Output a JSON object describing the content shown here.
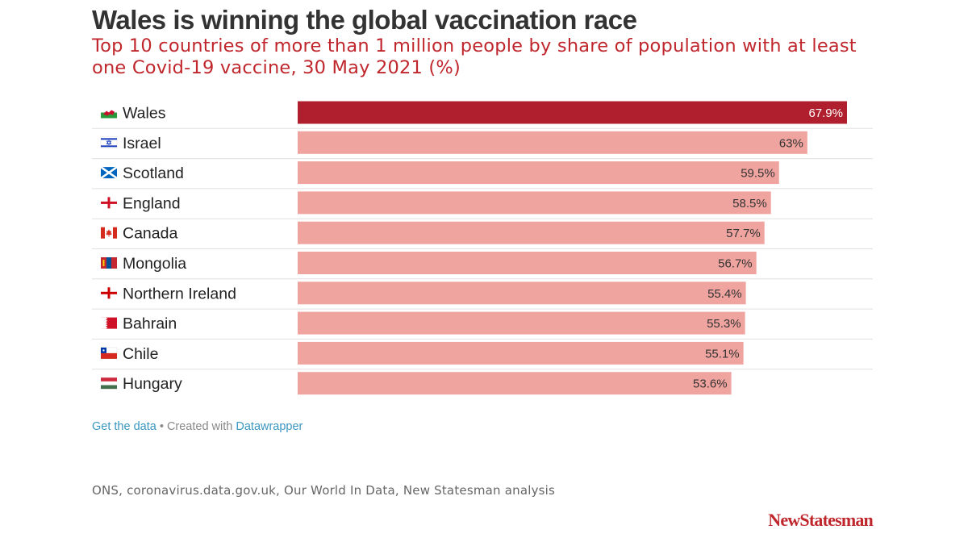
{
  "header": {
    "title": "Wales is winning the global vaccination race",
    "subtitle": "Top 10 countries of more than 1 million people by share of population with at least one Covid-19 vaccine, 30 May 2021 (%)"
  },
  "chart_data": {
    "type": "bar",
    "orientation": "horizontal",
    "title": "Wales is winning the global vaccination race",
    "subtitle": "Top 10 countries of more than 1 million people by share of population with at least one Covid-19 vaccine, 30 May 2021 (%)",
    "xlabel": "",
    "ylabel": "",
    "xlim": [
      0,
      67.9
    ],
    "grid": false,
    "categories": [
      "Wales",
      "Israel",
      "Scotland",
      "England",
      "Canada",
      "Mongolia",
      "Northern Ireland",
      "Bahrain",
      "Chile",
      "Hungary"
    ],
    "values": [
      67.9,
      63,
      59.5,
      58.5,
      57.7,
      56.7,
      55.4,
      55.3,
      55.1,
      53.6
    ],
    "value_labels": [
      "67.9%",
      "63%",
      "59.5%",
      "58.5%",
      "57.7%",
      "56.7%",
      "55.4%",
      "55.3%",
      "55.1%",
      "53.6%"
    ],
    "flags": [
      "wales-flag-icon",
      "israel-flag-icon",
      "scotland-flag-icon",
      "england-flag-icon",
      "canada-flag-icon",
      "mongolia-flag-icon",
      "northern-ireland-flag-icon",
      "bahrain-flag-icon",
      "chile-flag-icon",
      "hungary-flag-icon"
    ],
    "highlight_index": 0,
    "colors": {
      "highlight": "#b01f2d",
      "bar": "#f0a49f",
      "highlight_label": "#ffffff",
      "label": "#333333",
      "divider": "#e0e0e0"
    }
  },
  "footer": {
    "get_data": "Get the data",
    "separator": " • Created with ",
    "tool": "Datawrapper"
  },
  "source": "ONS, coronavirus.data.gov.uk, Our World In Data, New Statesman analysis",
  "brand": "NewStatesman"
}
